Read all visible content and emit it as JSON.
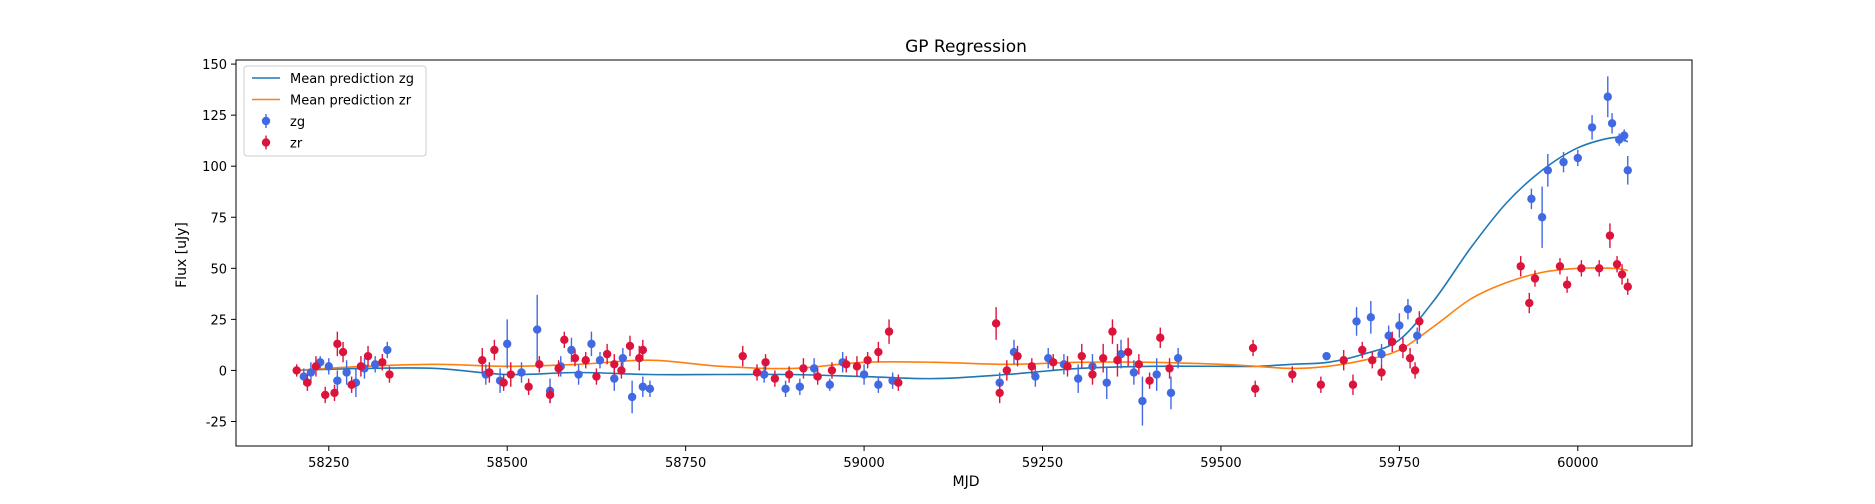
{
  "chart_data": {
    "type": "line",
    "title": "GP Regression",
    "xlabel": "MJD",
    "ylabel": "Flux [uJy]",
    "xlim": [
      58120,
      60160
    ],
    "ylim": [
      -37,
      152
    ],
    "x_ticks": [
      58250,
      58500,
      58750,
      59000,
      59250,
      59500,
      59750,
      60000
    ],
    "y_ticks": [
      -25,
      0,
      25,
      50,
      75,
      100,
      125,
      150
    ],
    "grid": false,
    "legend_position": "top-left",
    "legend": [
      {
        "label": "Mean prediction zg",
        "kind": "line",
        "color": "#1f77b4"
      },
      {
        "label": "Mean prediction zr",
        "kind": "line",
        "color": "#ff7f0e"
      },
      {
        "label": "zg",
        "kind": "errorbar",
        "color": "#4169e1"
      },
      {
        "label": "zr",
        "kind": "errorbar",
        "color": "#dc143c"
      }
    ],
    "series": [
      {
        "name": "Mean prediction zg",
        "kind": "line",
        "color": "#1f77b4",
        "x": [
          58200,
          58300,
          58400,
          58500,
          58600,
          58700,
          58800,
          58900,
          59000,
          59100,
          59200,
          59300,
          59400,
          59500,
          59550,
          59600,
          59650,
          59700,
          59750,
          59800,
          59850,
          59900,
          59950,
          60000,
          60050,
          60070
        ],
        "y": [
          0,
          1,
          1,
          -2,
          -1,
          -2,
          -2,
          -2,
          -3,
          -4,
          -2,
          1,
          2,
          2,
          2,
          3,
          4,
          8,
          15,
          35,
          60,
          82,
          98,
          109,
          114,
          112
        ]
      },
      {
        "name": "Mean prediction zr",
        "kind": "line",
        "color": "#ff7f0e",
        "x": [
          58200,
          58300,
          58400,
          58500,
          58600,
          58700,
          58800,
          58900,
          59000,
          59100,
          59200,
          59300,
          59400,
          59500,
          59550,
          59600,
          59650,
          59700,
          59750,
          59800,
          59850,
          59900,
          59950,
          60000,
          60050,
          60070
        ],
        "y": [
          0,
          2,
          3,
          2,
          3,
          5,
          2,
          1,
          4,
          4,
          3,
          4,
          4,
          3,
          2,
          1,
          2,
          5,
          10,
          22,
          35,
          43,
          48,
          50,
          50,
          49
        ]
      },
      {
        "name": "zg",
        "kind": "errorbar",
        "color": "#4169e1",
        "points": [
          [
            58215,
            -3,
            4
          ],
          [
            58225,
            -1,
            5
          ],
          [
            58238,
            4,
            3
          ],
          [
            58250,
            2,
            4
          ],
          [
            58262,
            -5,
            5
          ],
          [
            58275,
            -1,
            6
          ],
          [
            58288,
            -6,
            7
          ],
          [
            58300,
            1,
            5
          ],
          [
            58315,
            3,
            4
          ],
          [
            58332,
            10,
            4
          ],
          [
            58470,
            -2,
            5
          ],
          [
            58490,
            -5,
            6
          ],
          [
            58500,
            13,
            12
          ],
          [
            58520,
            -1,
            5
          ],
          [
            58542,
            20,
            17
          ],
          [
            58560,
            -10,
            6
          ],
          [
            58575,
            2,
            5
          ],
          [
            58590,
            10,
            6
          ],
          [
            58600,
            -2,
            5
          ],
          [
            58618,
            13,
            6
          ],
          [
            58630,
            5,
            4
          ],
          [
            58650,
            -4,
            6
          ],
          [
            58662,
            6,
            5
          ],
          [
            58675,
            -13,
            8
          ],
          [
            58690,
            -8,
            5
          ],
          [
            58700,
            -9,
            4
          ],
          [
            58860,
            -2,
            4
          ],
          [
            58890,
            -9,
            4
          ],
          [
            58910,
            -8,
            4
          ],
          [
            58930,
            1,
            5
          ],
          [
            58952,
            -7,
            3
          ],
          [
            58970,
            4,
            5
          ],
          [
            59000,
            -2,
            5
          ],
          [
            59020,
            -7,
            4
          ],
          [
            59040,
            -5,
            4
          ],
          [
            59190,
            -6,
            5
          ],
          [
            59210,
            9,
            6
          ],
          [
            59240,
            -3,
            5
          ],
          [
            59258,
            6,
            5
          ],
          [
            59280,
            3,
            5
          ],
          [
            59300,
            -4,
            7
          ],
          [
            59320,
            2,
            6
          ],
          [
            59340,
            -6,
            8
          ],
          [
            59360,
            8,
            7
          ],
          [
            59378,
            -1,
            6
          ],
          [
            59390,
            -15,
            12
          ],
          [
            59410,
            -2,
            8
          ],
          [
            59430,
            -11,
            8
          ],
          [
            59440,
            6,
            5
          ],
          [
            59648,
            7,
            2
          ],
          [
            59690,
            24,
            7
          ],
          [
            59710,
            26,
            8
          ],
          [
            59725,
            8,
            5
          ],
          [
            59735,
            17,
            5
          ],
          [
            59750,
            22,
            6
          ],
          [
            59762,
            30,
            5
          ],
          [
            59775,
            17,
            4
          ],
          [
            59935,
            84,
            5
          ],
          [
            59950,
            75,
            15
          ],
          [
            59958,
            98,
            8
          ],
          [
            59980,
            102,
            5
          ],
          [
            60000,
            104,
            4
          ],
          [
            60020,
            119,
            6
          ],
          [
            60042,
            134,
            10
          ],
          [
            60048,
            121,
            5
          ],
          [
            60058,
            113,
            3
          ],
          [
            60065,
            115,
            3
          ],
          [
            60070,
            98,
            7
          ]
        ]
      },
      {
        "name": "zr",
        "kind": "errorbar",
        "color": "#dc143c",
        "points": [
          [
            58205,
            0,
            3
          ],
          [
            58220,
            -6,
            4
          ],
          [
            58232,
            2,
            5
          ],
          [
            58245,
            -12,
            4
          ],
          [
            58258,
            -11,
            4
          ],
          [
            58262,
            13,
            6
          ],
          [
            58270,
            9,
            5
          ],
          [
            58282,
            -7,
            4
          ],
          [
            58295,
            2,
            5
          ],
          [
            58305,
            7,
            5
          ],
          [
            58325,
            4,
            4
          ],
          [
            58335,
            -2,
            4
          ],
          [
            58465,
            5,
            6
          ],
          [
            58475,
            -1,
            5
          ],
          [
            58482,
            10,
            5
          ],
          [
            58495,
            -6,
            4
          ],
          [
            58505,
            -2,
            6
          ],
          [
            58530,
            -8,
            4
          ],
          [
            58545,
            3,
            4
          ],
          [
            58560,
            -12,
            4
          ],
          [
            58572,
            1,
            4
          ],
          [
            58580,
            15,
            4
          ],
          [
            58595,
            6,
            4
          ],
          [
            58610,
            5,
            4
          ],
          [
            58625,
            -3,
            4
          ],
          [
            58640,
            8,
            5
          ],
          [
            58650,
            3,
            5
          ],
          [
            58660,
            0,
            4
          ],
          [
            58672,
            12,
            5
          ],
          [
            58685,
            6,
            6
          ],
          [
            58690,
            10,
            5
          ],
          [
            58830,
            7,
            5
          ],
          [
            58850,
            -1,
            4
          ],
          [
            58862,
            4,
            4
          ],
          [
            58875,
            -4,
            4
          ],
          [
            58895,
            -2,
            4
          ],
          [
            58915,
            1,
            5
          ],
          [
            58935,
            -3,
            4
          ],
          [
            58955,
            0,
            4
          ],
          [
            58975,
            3,
            4
          ],
          [
            58990,
            2,
            5
          ],
          [
            59005,
            5,
            4
          ],
          [
            59020,
            9,
            5
          ],
          [
            59035,
            19,
            6
          ],
          [
            59048,
            -6,
            4
          ],
          [
            59185,
            23,
            8
          ],
          [
            59190,
            -11,
            5
          ],
          [
            59200,
            0,
            5
          ],
          [
            59215,
            7,
            5
          ],
          [
            59235,
            2,
            4
          ],
          [
            59265,
            4,
            4
          ],
          [
            59285,
            2,
            5
          ],
          [
            59305,
            7,
            6
          ],
          [
            59320,
            -2,
            5
          ],
          [
            59335,
            6,
            7
          ],
          [
            59348,
            19,
            6
          ],
          [
            59355,
            5,
            8
          ],
          [
            59370,
            9,
            7
          ],
          [
            59385,
            3,
            5
          ],
          [
            59400,
            -5,
            4
          ],
          [
            59415,
            16,
            5
          ],
          [
            59428,
            1,
            5
          ],
          [
            59545,
            11,
            4
          ],
          [
            59548,
            -9,
            4
          ],
          [
            59600,
            -2,
            4
          ],
          [
            59640,
            -7,
            4
          ],
          [
            59672,
            5,
            5
          ],
          [
            59685,
            -7,
            5
          ],
          [
            59698,
            10,
            4
          ],
          [
            59712,
            5,
            4
          ],
          [
            59725,
            -1,
            4
          ],
          [
            59740,
            14,
            5
          ],
          [
            59755,
            11,
            5
          ],
          [
            59765,
            6,
            5
          ],
          [
            59772,
            0,
            4
          ],
          [
            59778,
            24,
            5
          ],
          [
            59920,
            51,
            5
          ],
          [
            59932,
            33,
            5
          ],
          [
            59940,
            45,
            4
          ],
          [
            59975,
            51,
            4
          ],
          [
            59985,
            42,
            4
          ],
          [
            60005,
            50,
            4
          ],
          [
            60030,
            50,
            4
          ],
          [
            60045,
            66,
            6
          ],
          [
            60055,
            52,
            4
          ],
          [
            60062,
            47,
            5
          ],
          [
            60070,
            41,
            4
          ]
        ]
      }
    ]
  }
}
